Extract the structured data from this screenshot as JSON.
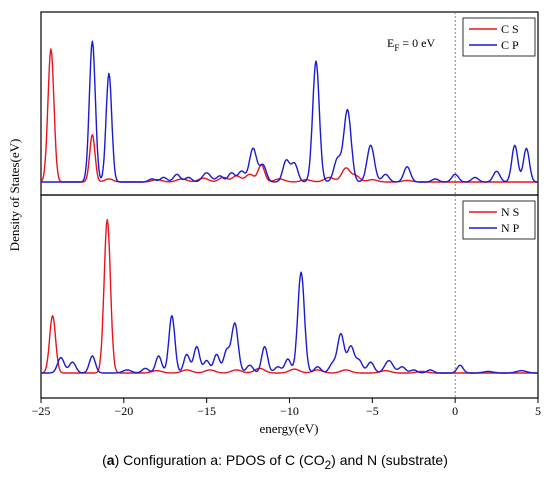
{
  "figure": {
    "ylabel": "Density of States(eV)",
    "xlabel": "energy(eV)",
    "fermi_label_main": "E",
    "fermi_label_sub": "F",
    "fermi_label_rest": " = 0 eV"
  },
  "caption": {
    "tag_open": "(",
    "tag": "a",
    "tag_close": ")",
    "text": " Configuration a: PDOS of C (CO",
    "sub": "2",
    "text2": ") and N (substrate)"
  },
  "colors": {
    "s_orbital": "#e8141c",
    "p_orbital": "#1a1ad2",
    "fermi_line": "#666666",
    "axis": "#000000"
  },
  "chart_data": [
    {
      "type": "line",
      "panel": "top",
      "xlim": [
        -25,
        5
      ],
      "ylim": [
        0,
        1
      ],
      "grid": false,
      "legend_position": "top-right",
      "annotation": "E_F = 0 eV",
      "xticks": [],
      "series": [
        {
          "name": "C S",
          "color": "#e8141c",
          "peaks": [
            {
              "x": -24.4,
              "y": 0.87,
              "w": 0.18
            },
            {
              "x": -21.9,
              "y": 0.31,
              "w": 0.16
            },
            {
              "x": -20.9,
              "y": 0.02,
              "w": 0.25
            },
            {
              "x": -18.0,
              "y": 0.015,
              "w": 0.3
            },
            {
              "x": -16.5,
              "y": 0.02,
              "w": 0.3
            },
            {
              "x": -15.2,
              "y": 0.025,
              "w": 0.3
            },
            {
              "x": -14.0,
              "y": 0.03,
              "w": 0.25
            },
            {
              "x": -13.2,
              "y": 0.04,
              "w": 0.25
            },
            {
              "x": -12.4,
              "y": 0.05,
              "w": 0.25
            },
            {
              "x": -11.7,
              "y": 0.11,
              "w": 0.2
            },
            {
              "x": -10.6,
              "y": 0.02,
              "w": 0.3
            },
            {
              "x": -9.0,
              "y": 0.015,
              "w": 0.3
            },
            {
              "x": -7.6,
              "y": 0.03,
              "w": 0.3
            },
            {
              "x": -6.6,
              "y": 0.09,
              "w": 0.25
            },
            {
              "x": -6.0,
              "y": 0.04,
              "w": 0.25
            },
            {
              "x": -5.0,
              "y": 0.015,
              "w": 0.3
            },
            {
              "x": -2.9,
              "y": 0.01,
              "w": 0.3
            }
          ]
        },
        {
          "name": "C P",
          "color": "#1a1ad2",
          "peaks": [
            {
              "x": -21.9,
              "y": 0.92,
              "w": 0.18
            },
            {
              "x": -20.9,
              "y": 0.71,
              "w": 0.17
            },
            {
              "x": -18.3,
              "y": 0.02,
              "w": 0.2
            },
            {
              "x": -17.6,
              "y": 0.03,
              "w": 0.2
            },
            {
              "x": -16.8,
              "y": 0.05,
              "w": 0.2
            },
            {
              "x": -16.1,
              "y": 0.03,
              "w": 0.2
            },
            {
              "x": -15.0,
              "y": 0.06,
              "w": 0.25
            },
            {
              "x": -14.2,
              "y": 0.04,
              "w": 0.2
            },
            {
              "x": -13.5,
              "y": 0.06,
              "w": 0.2
            },
            {
              "x": -12.9,
              "y": 0.07,
              "w": 0.2
            },
            {
              "x": -12.2,
              "y": 0.22,
              "w": 0.22
            },
            {
              "x": -11.6,
              "y": 0.11,
              "w": 0.2
            },
            {
              "x": -10.2,
              "y": 0.14,
              "w": 0.2
            },
            {
              "x": -9.7,
              "y": 0.12,
              "w": 0.2
            },
            {
              "x": -8.4,
              "y": 0.79,
              "w": 0.2
            },
            {
              "x": -7.1,
              "y": 0.15,
              "w": 0.22
            },
            {
              "x": -6.5,
              "y": 0.47,
              "w": 0.22
            },
            {
              "x": -5.1,
              "y": 0.24,
              "w": 0.22
            },
            {
              "x": -4.2,
              "y": 0.05,
              "w": 0.2
            },
            {
              "x": -2.9,
              "y": 0.1,
              "w": 0.2
            },
            {
              "x": -1.2,
              "y": 0.02,
              "w": 0.2
            },
            {
              "x": 0.0,
              "y": 0.05,
              "w": 0.2
            },
            {
              "x": 1.2,
              "y": 0.03,
              "w": 0.2
            },
            {
              "x": 2.5,
              "y": 0.07,
              "w": 0.2
            },
            {
              "x": 3.6,
              "y": 0.24,
              "w": 0.18
            },
            {
              "x": 4.3,
              "y": 0.22,
              "w": 0.18
            }
          ]
        }
      ]
    },
    {
      "type": "line",
      "panel": "bottom",
      "xlim": [
        -25,
        5
      ],
      "ylim": [
        0,
        1
      ],
      "grid": false,
      "legend_position": "top-right",
      "xticks": [
        -25,
        -20,
        -15,
        -10,
        -5,
        0,
        5
      ],
      "series": [
        {
          "name": "N S",
          "color": "#e8141c",
          "peaks": [
            {
              "x": -24.3,
              "y": 0.37,
              "w": 0.18
            },
            {
              "x": -21.0,
              "y": 0.99,
              "w": 0.19
            },
            {
              "x": -18.0,
              "y": 0.015,
              "w": 0.3
            },
            {
              "x": -16.2,
              "y": 0.02,
              "w": 0.3
            },
            {
              "x": -14.8,
              "y": 0.02,
              "w": 0.3
            },
            {
              "x": -13.2,
              "y": 0.02,
              "w": 0.3
            },
            {
              "x": -11.8,
              "y": 0.03,
              "w": 0.3
            },
            {
              "x": -9.7,
              "y": 0.025,
              "w": 0.3
            },
            {
              "x": -8.3,
              "y": 0.02,
              "w": 0.3
            },
            {
              "x": -6.6,
              "y": 0.02,
              "w": 0.3
            },
            {
              "x": -4.2,
              "y": 0.015,
              "w": 0.3
            },
            {
              "x": -2.0,
              "y": 0.01,
              "w": 0.3
            }
          ]
        },
        {
          "name": "N P",
          "color": "#1a1ad2",
          "peaks": [
            {
              "x": -23.8,
              "y": 0.1,
              "w": 0.2
            },
            {
              "x": -23.1,
              "y": 0.07,
              "w": 0.2
            },
            {
              "x": -21.9,
              "y": 0.11,
              "w": 0.18
            },
            {
              "x": -19.8,
              "y": 0.02,
              "w": 0.25
            },
            {
              "x": -18.7,
              "y": 0.03,
              "w": 0.2
            },
            {
              "x": -17.9,
              "y": 0.11,
              "w": 0.18
            },
            {
              "x": -17.1,
              "y": 0.37,
              "w": 0.18
            },
            {
              "x": -16.2,
              "y": 0.12,
              "w": 0.18
            },
            {
              "x": -15.6,
              "y": 0.17,
              "w": 0.18
            },
            {
              "x": -15.0,
              "y": 0.08,
              "w": 0.18
            },
            {
              "x": -14.4,
              "y": 0.12,
              "w": 0.18
            },
            {
              "x": -13.8,
              "y": 0.14,
              "w": 0.18
            },
            {
              "x": -13.3,
              "y": 0.32,
              "w": 0.2
            },
            {
              "x": -12.4,
              "y": 0.05,
              "w": 0.2
            },
            {
              "x": -11.5,
              "y": 0.17,
              "w": 0.18
            },
            {
              "x": -10.7,
              "y": 0.04,
              "w": 0.2
            },
            {
              "x": -10.1,
              "y": 0.09,
              "w": 0.18
            },
            {
              "x": -9.3,
              "y": 0.65,
              "w": 0.2
            },
            {
              "x": -8.3,
              "y": 0.04,
              "w": 0.2
            },
            {
              "x": -7.4,
              "y": 0.06,
              "w": 0.2
            },
            {
              "x": -6.9,
              "y": 0.25,
              "w": 0.2
            },
            {
              "x": -6.3,
              "y": 0.17,
              "w": 0.2
            },
            {
              "x": -5.8,
              "y": 0.08,
              "w": 0.2
            },
            {
              "x": -5.1,
              "y": 0.07,
              "w": 0.2
            },
            {
              "x": -4.0,
              "y": 0.08,
              "w": 0.25
            },
            {
              "x": -3.2,
              "y": 0.04,
              "w": 0.2
            },
            {
              "x": -2.5,
              "y": 0.02,
              "w": 0.2
            },
            {
              "x": -1.5,
              "y": 0.02,
              "w": 0.2
            },
            {
              "x": 0.3,
              "y": 0.05,
              "w": 0.18
            },
            {
              "x": 2.0,
              "y": 0.01,
              "w": 0.3
            },
            {
              "x": 4.0,
              "y": 0.015,
              "w": 0.3
            }
          ]
        }
      ]
    }
  ]
}
